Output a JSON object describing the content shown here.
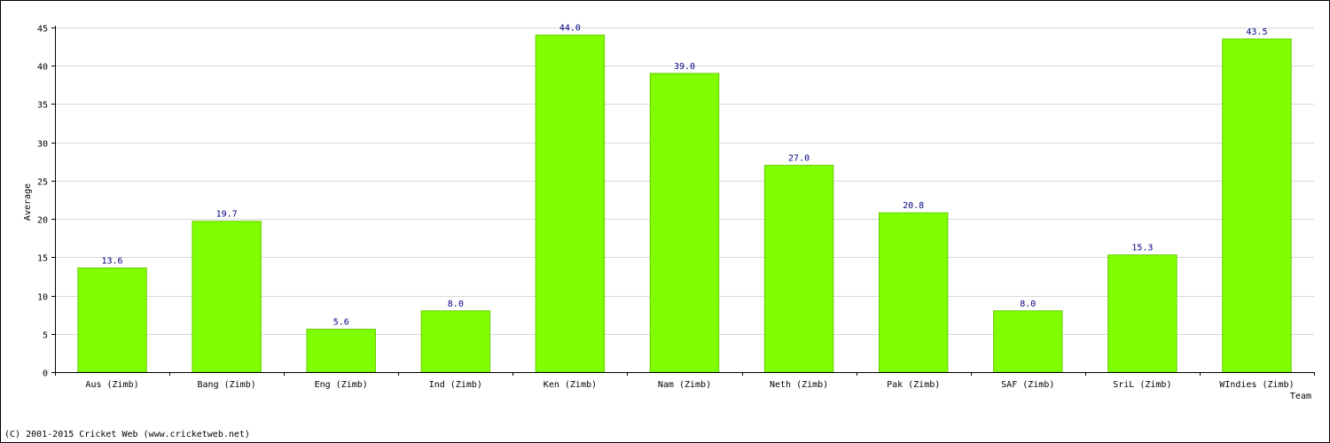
{
  "chart_data": {
    "type": "bar",
    "title": "",
    "xlabel": "Team",
    "ylabel": "Average",
    "ylim": [
      0,
      45
    ],
    "yticks": [
      0,
      5,
      10,
      15,
      20,
      25,
      30,
      35,
      40,
      45
    ],
    "grid": true,
    "categories": [
      "Aus (Zimb)",
      "Bang (Zimb)",
      "Eng (Zimb)",
      "Ind (Zimb)",
      "Ken (Zimb)",
      "Nam (Zimb)",
      "Neth (Zimb)",
      "Pak (Zimb)",
      "SAF (Zimb)",
      "SriL (Zimb)",
      "WIndies (Zimb)"
    ],
    "values": [
      13.6,
      19.7,
      5.6,
      8.0,
      44.0,
      39.0,
      27.0,
      20.8,
      8.0,
      15.3,
      43.5
    ],
    "value_labels": [
      "13.6",
      "19.7",
      "5.6",
      "8.0",
      "44.0",
      "39.0",
      "27.0",
      "20.8",
      "8.0",
      "15.3",
      "43.5"
    ],
    "bar_color": "#80ff00",
    "bar_edge_color": "#66cc00",
    "value_label_color": "#000080",
    "grid_color": "#d8d8d8"
  },
  "footer": "(C) 2001-2015 Cricket Web (www.cricketweb.net)"
}
